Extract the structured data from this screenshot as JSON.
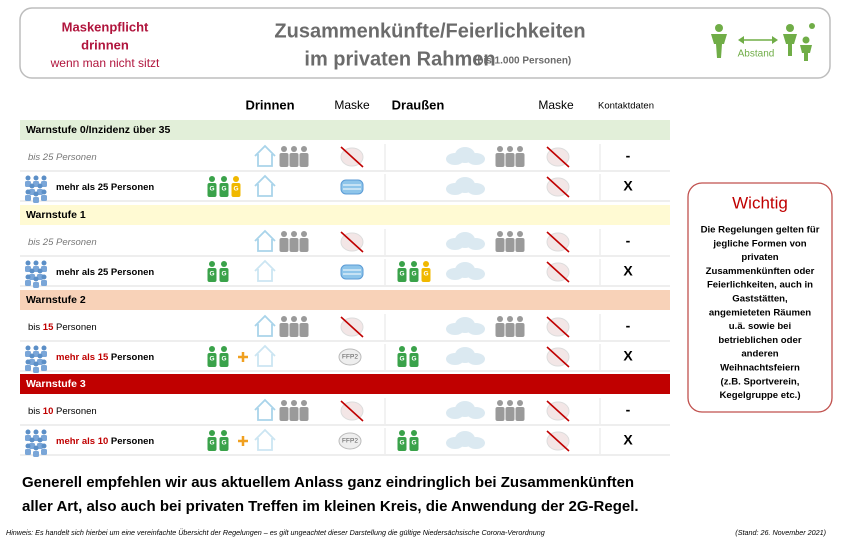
{
  "header": {
    "mask_rule": [
      "Maskenpflicht",
      "drinnen",
      "wenn man nicht sitzt"
    ],
    "title": [
      "Zusammenkünfte/Feierlichkeiten",
      "im privaten Rahmen"
    ],
    "title_note": "(bis 1.000 Personen)",
    "distance": "Abstand"
  },
  "columns": [
    "Drinnen",
    "Maske",
    "Draußen",
    "Maske",
    "Kontaktdaten"
  ],
  "g_label": "G",
  "mask_label": "FFP2",
  "levels": [
    {
      "label": "Warnstufe 0/Inzidenz über 35",
      "rows": [
        {
          "label": [
            "bis 25 Personen"
          ],
          "contact": "-"
        },
        {
          "label": [
            "mehr als 25 Personen"
          ],
          "contact": "X"
        }
      ]
    },
    {
      "label": "Warnstufe 1",
      "rows": [
        {
          "label": [
            "bis 25 Personen"
          ],
          "contact": "-"
        },
        {
          "label": [
            "mehr als 25 Personen"
          ],
          "contact": "X"
        }
      ]
    },
    {
      "label": "Warnstufe 2",
      "rows": [
        {
          "label": [
            "bis ",
            "15",
            " Personen"
          ],
          "contact": "-"
        },
        {
          "label": [
            "mehr als 15",
            " Personen"
          ],
          "contact": "X"
        }
      ]
    },
    {
      "label": "Warnstufe 3",
      "rows": [
        {
          "label": [
            "bis ",
            "10",
            " Personen"
          ],
          "contact": "-"
        },
        {
          "label": [
            "mehr als 10",
            " Personen"
          ],
          "contact": "X"
        }
      ]
    }
  ],
  "notice": {
    "title": "Wichtig",
    "lines": [
      "Die Regelungen gelten für",
      "jegliche Formen von",
      "privaten",
      "Zusammenkünften oder",
      "Feierlichkeiten, auch in",
      "Gaststätten,",
      "angemieteten Räumen",
      "u.ä. sowie bei",
      "betrieblichen oder",
      "anderen",
      "Weihnachtsfeiern",
      "(z.B. Sportverein,",
      "Kegelgruppe etc.)"
    ]
  },
  "footer": {
    "recommendation": [
      "Generell empfehlen wir aus aktuellem Anlass ganz eindringlich bei Zusammenkünften",
      "aller Art, also auch bei privaten Treffen im kleinen Kreis, die Anwendung der 2G-Regel."
    ],
    "hint": "Hinweis: Es handelt sich hierbei um eine vereinfachte Übersicht der Regelungen – es gilt ungeachtet dieser Darstellung die gültige Niedersächsische Corona-Verordnung",
    "date": "(Stand: 26. November 2021)"
  }
}
